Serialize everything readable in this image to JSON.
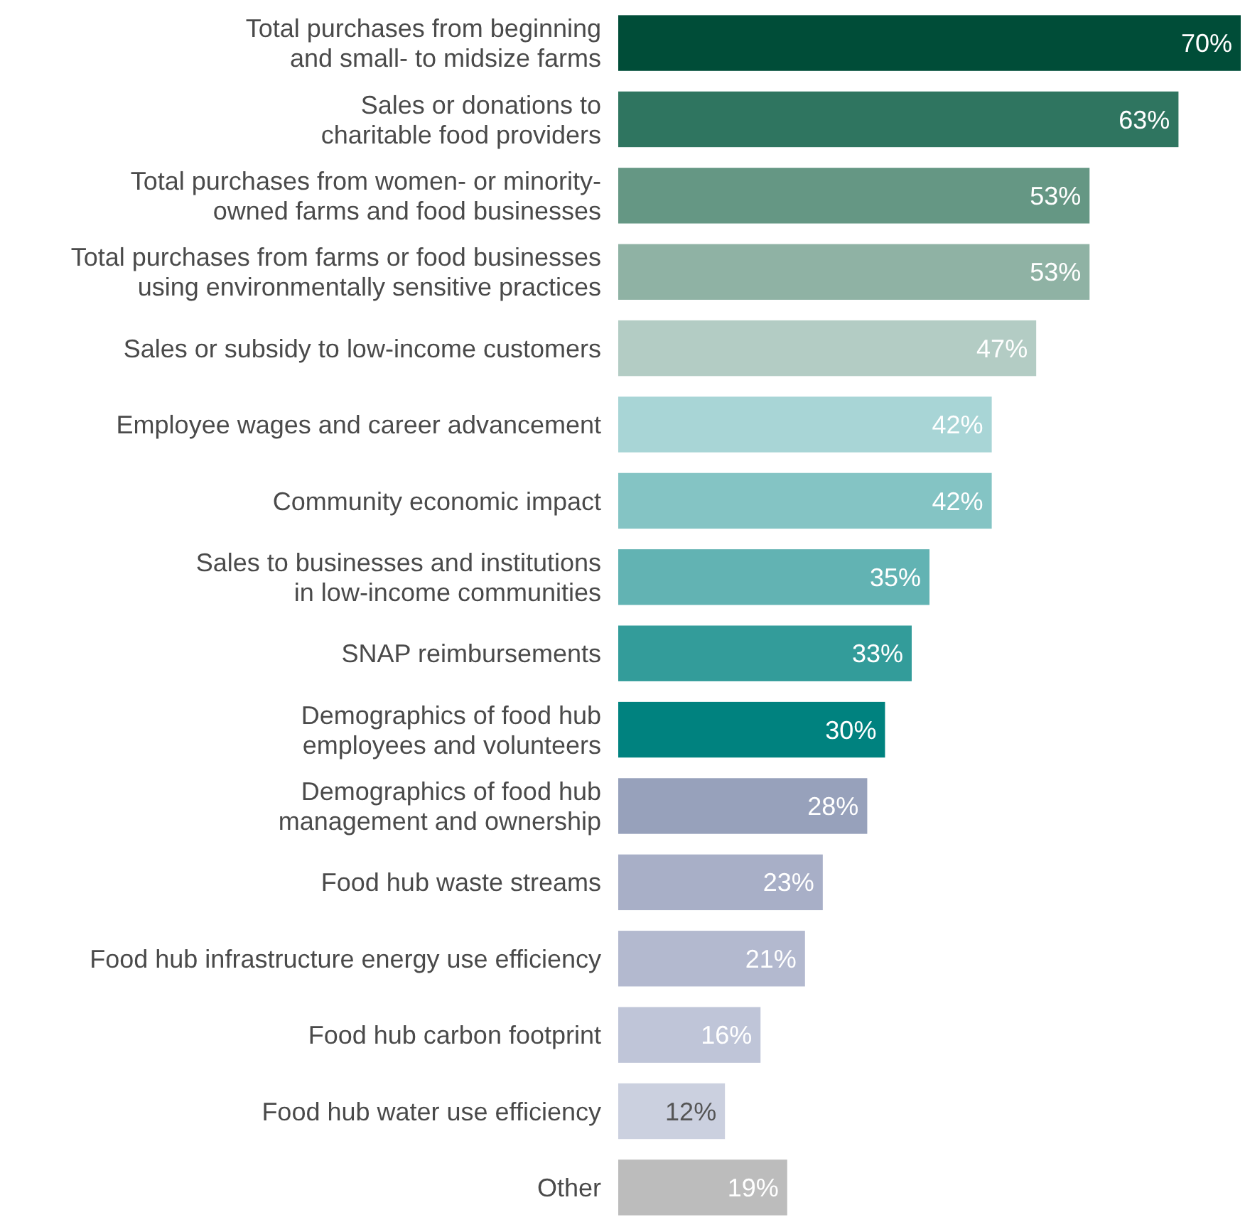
{
  "chart_data": {
    "type": "bar",
    "orientation": "horizontal",
    "categories": [
      "Total purchases from beginning\nand small- to midsize farms",
      "Sales or donations to\ncharitable food providers",
      "Total purchases from women- or minority-\nowned farms and food businesses",
      "Total purchases from farms or food businesses\nusing environmentally sensitive practices",
      "Sales or subsidy to low-income customers",
      "Employee wages and career advancement",
      "Community economic impact",
      "Sales to businesses and institutions\nin low-income communities",
      "SNAP reimbursements",
      "Demographics of food hub\nemployees and volunteers",
      "Demographics of food hub\nmanagement and ownership",
      "Food hub waste streams",
      "Food hub infrastructure energy use efficiency",
      "Food hub carbon footprint",
      "Food hub water use efficiency",
      "Other"
    ],
    "values": [
      70,
      63,
      53,
      53,
      47,
      42,
      42,
      35,
      33,
      30,
      28,
      23,
      21,
      16,
      12,
      19
    ],
    "value_labels": [
      "70%",
      "63%",
      "53%",
      "53%",
      "47%",
      "42%",
      "42%",
      "35%",
      "33%",
      "30%",
      "28%",
      "23%",
      "21%",
      "16%",
      "12%",
      "19%"
    ],
    "colors": [
      "#004d38",
      "#2f7560",
      "#659784",
      "#8fb2a4",
      "#b3ccc4",
      "#a8d5d6",
      "#84c4c4",
      "#62b3b3",
      "#339c9a",
      "#00827f",
      "#97a1bb",
      "#a8afc7",
      "#b3b9cf",
      "#bfc5d8",
      "#cbd0df",
      "#bcbcbc"
    ]
  }
}
